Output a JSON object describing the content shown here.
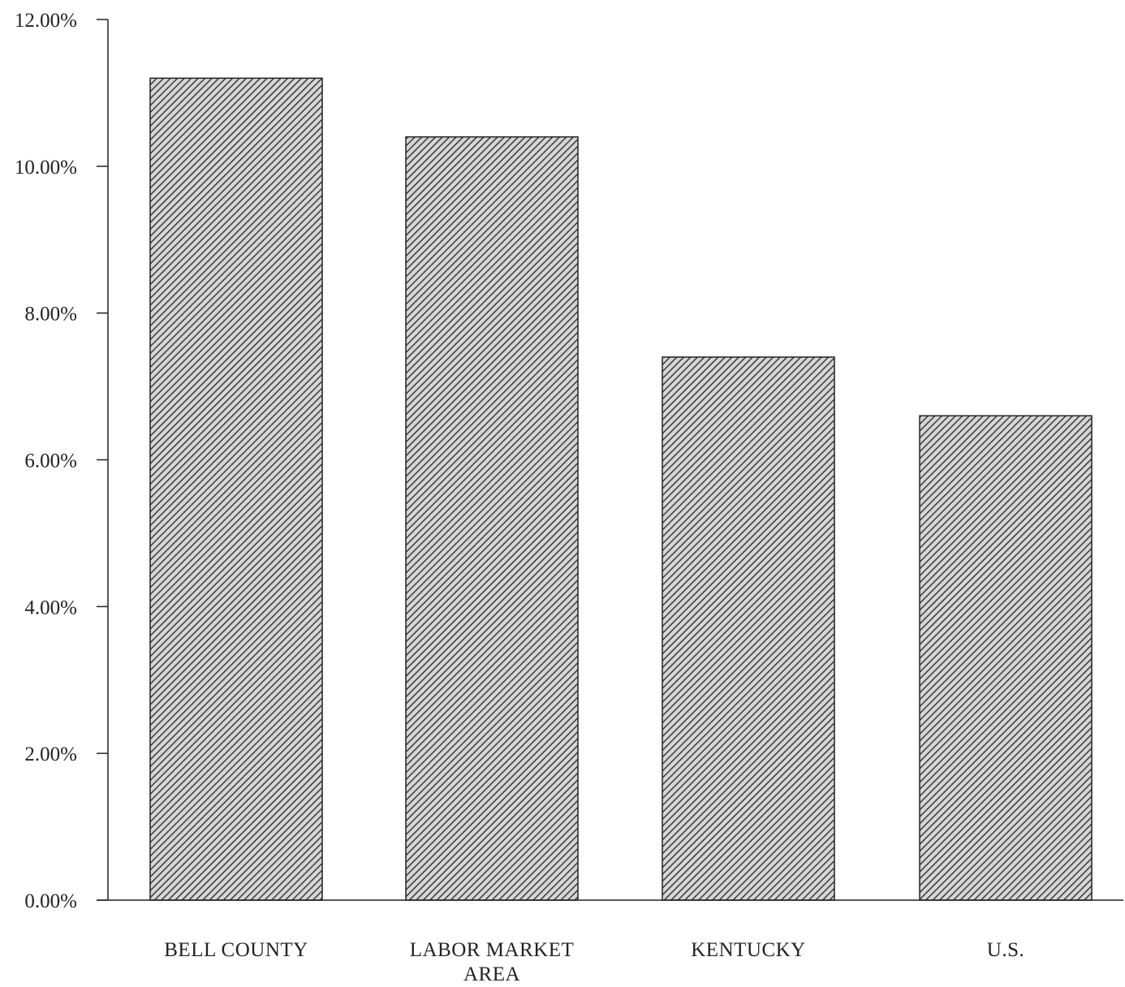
{
  "chart_data": {
    "type": "bar",
    "title": "",
    "xlabel": "",
    "ylabel": "",
    "categories": [
      [
        "BELL COUNTY"
      ],
      [
        "LABOR MARKET",
        "AREA"
      ],
      [
        "KENTUCKY"
      ],
      [
        "U.S."
      ]
    ],
    "values": [
      11.2,
      10.4,
      7.4,
      6.6
    ],
    "ylim": [
      0,
      12
    ],
    "yticks": [
      {
        "value": 0,
        "label": "0.00%"
      },
      {
        "value": 2,
        "label": "2.00%"
      },
      {
        "value": 4,
        "label": "4.00%"
      },
      {
        "value": 6,
        "label": "6.00%"
      },
      {
        "value": 8,
        "label": "8.00%"
      },
      {
        "value": 10,
        "label": "10.00%"
      },
      {
        "value": 12,
        "label": "12.00%"
      }
    ],
    "grid": false,
    "legend": "none",
    "bar_fill": "hatched",
    "colors": {
      "axis": "#222222",
      "bar_stroke": "#222222",
      "bar_base": "#d6d6d6",
      "hatch": "#3a3a3a"
    }
  }
}
